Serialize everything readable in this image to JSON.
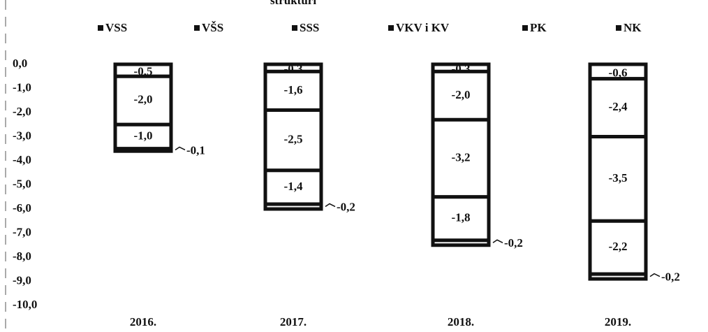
{
  "chart_data": {
    "type": "stacked-bar",
    "title": "strukturi",
    "categories": [
      "2016.",
      "2017.",
      "2018.",
      "2019."
    ],
    "series": [
      {
        "name": "VSS",
        "color": "#ffffff",
        "values": [
          -0.5,
          -0.3,
          -0.3,
          -0.6
        ],
        "value_labels": [
          "-0,5",
          "-0,3",
          "-0,3",
          "-0,6"
        ]
      },
      {
        "name": "VŠS",
        "color": "#ffffff",
        "values": [
          -2.0,
          -1.6,
          -2.0,
          -2.4
        ],
        "value_labels": [
          "-2,0",
          "-1,6",
          "-2,0",
          "-2,4"
        ]
      },
      {
        "name": "SSS",
        "color": "#ffffff",
        "values": [
          null,
          -2.5,
          -3.2,
          -3.5
        ],
        "value_labels": [
          null,
          "-2,5",
          "-3,2",
          "-3,5"
        ]
      },
      {
        "name": "VKV i KV",
        "color": "#ffffff",
        "values": [
          -1.0,
          -1.4,
          -1.8,
          -2.2
        ],
        "value_labels": [
          "-1,0",
          "-1,4",
          "-1,8",
          "-2,2"
        ]
      },
      {
        "name": "PK",
        "color": "#ffffff",
        "values": [
          -0.1,
          -0.2,
          -0.2,
          -0.2
        ],
        "value_labels": [
          "-0,1",
          "-0,2",
          "-0,2",
          "-0,2"
        ]
      },
      {
        "name": "NK",
        "color": "#ffffff",
        "values": [
          null,
          null,
          null,
          null
        ]
      }
    ],
    "ylim": [
      -10,
      0
    ],
    "yticks": [
      {
        "value": 0,
        "label": "0,0"
      },
      {
        "value": -1,
        "label": "-1,0"
      },
      {
        "value": -2,
        "label": "-2,0"
      },
      {
        "value": -3,
        "label": "-3,0"
      },
      {
        "value": -4,
        "label": "-4,0"
      },
      {
        "value": -5,
        "label": "-5,0"
      },
      {
        "value": -6,
        "label": "-6,0"
      },
      {
        "value": -7,
        "label": "-7,0"
      },
      {
        "value": -8,
        "label": "-8,0"
      },
      {
        "value": -9,
        "label": "-9,0"
      },
      {
        "value": -10,
        "label": "-10,0"
      }
    ],
    "legend": "top"
  }
}
